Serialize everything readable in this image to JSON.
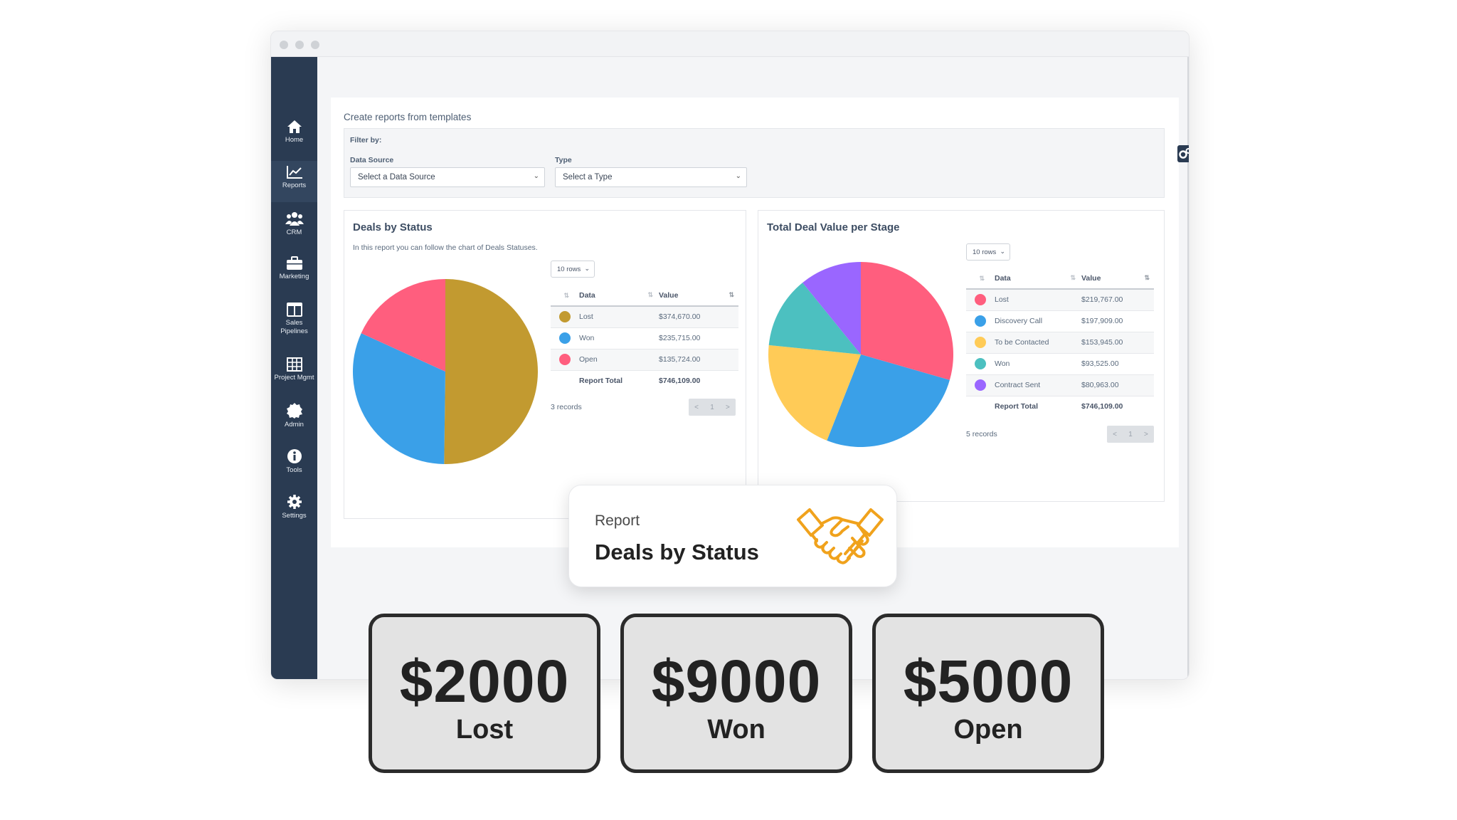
{
  "sidebar": {
    "items": [
      {
        "label": "Home",
        "icon": "home-icon"
      },
      {
        "label": "Reports",
        "icon": "chart-line-icon",
        "active": true
      },
      {
        "label": "CRM",
        "icon": "users-icon"
      },
      {
        "label": "Marketing",
        "icon": "briefcase-icon"
      },
      {
        "label": "Sales\nPipelines",
        "icon": "columns-icon"
      },
      {
        "label": "Project Mgmt",
        "icon": "table-icon"
      },
      {
        "label": "Admin",
        "icon": "badge-icon"
      },
      {
        "label": "Tools",
        "icon": "info-icon"
      },
      {
        "label": "Settings",
        "icon": "gear-icon"
      }
    ]
  },
  "main": {
    "heading": "Create reports from templates",
    "filter": {
      "title": "Filter by:",
      "data_source_label": "Data Source",
      "data_source_value": "Select a Data Source",
      "type_label": "Type",
      "type_value": "Select a Type"
    }
  },
  "deals_by_status": {
    "title": "Deals by Status",
    "subtitle": "In this report you can follow the chart of Deals Statuses.",
    "rows_select": "10 rows",
    "col_data": "Data",
    "col_value": "Value",
    "rows": [
      {
        "name": "Lost",
        "value": "$374,670.00",
        "color": "#c29a30"
      },
      {
        "name": "Won",
        "value": "$235,715.00",
        "color": "#3aa0e8"
      },
      {
        "name": "Open",
        "value": "$135,724.00",
        "color": "#ff5e7e"
      }
    ],
    "total_label": "Report Total",
    "total_value": "$746,109.00",
    "records": "3 records",
    "pager": {
      "prev": "<",
      "page": "1",
      "next": ">"
    }
  },
  "total_deal_value": {
    "title": "Total Deal Value per Stage",
    "rows_select": "10 rows",
    "col_data": "Data",
    "col_value": "Value",
    "rows": [
      {
        "name": "Lost",
        "value": "$219,767.00",
        "color": "#ff5e7e"
      },
      {
        "name": "Discovery Call",
        "value": "$197,909.00",
        "color": "#3aa0e8"
      },
      {
        "name": "To be Contacted",
        "value": "$153,945.00",
        "color": "#ffcb57"
      },
      {
        "name": "Won",
        "value": "$93,525.00",
        "color": "#4cc0c0"
      },
      {
        "name": "Contract Sent",
        "value": "$80,963.00",
        "color": "#9a66ff"
      }
    ],
    "total_label": "Report Total",
    "total_value": "$746,109.00",
    "records": "5 records",
    "pager": {
      "prev": "<",
      "page": "1",
      "next": ">"
    }
  },
  "report_pill": {
    "kicker": "Report",
    "title": "Deals by Status",
    "icon": "handshake-icon",
    "accent": "#f0a21c"
  },
  "summary": [
    {
      "value": "$2000",
      "label": "Lost"
    },
    {
      "value": "$9000",
      "label": "Won"
    },
    {
      "value": "$5000",
      "label": "Open"
    }
  ],
  "chart_data": [
    {
      "type": "pie",
      "title": "Deals by Status",
      "categories": [
        "Lost",
        "Won",
        "Open"
      ],
      "values": [
        374670,
        235715,
        135724
      ],
      "colors": [
        "#c29a30",
        "#3aa0e8",
        "#ff5e7e"
      ]
    },
    {
      "type": "pie",
      "title": "Total Deal Value per Stage",
      "categories": [
        "Lost",
        "Discovery Call",
        "To be Contacted",
        "Won",
        "Contract Sent"
      ],
      "values": [
        219767,
        197909,
        153945,
        93525,
        80963
      ],
      "colors": [
        "#ff5e7e",
        "#3aa0e8",
        "#ffcb57",
        "#4cc0c0",
        "#9a66ff"
      ]
    }
  ]
}
